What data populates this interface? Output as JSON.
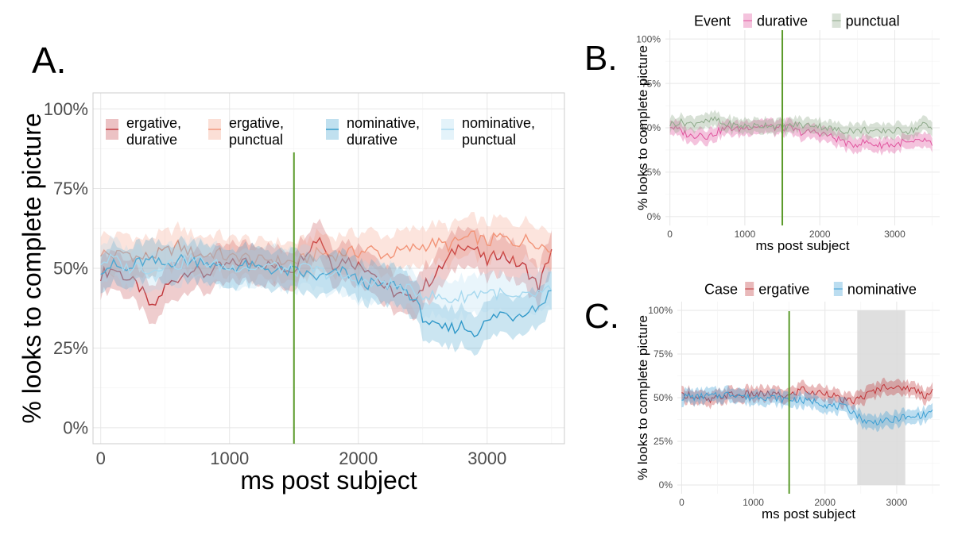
{
  "chart_data": [
    {
      "panel": "A.",
      "type": "line",
      "xlabel": "ms post subject",
      "ylabel": "% looks to complete picture",
      "xlim": [
        -60,
        3600
      ],
      "ylim": [
        -5,
        105
      ],
      "xticks": [
        0,
        1000,
        2000,
        3000
      ],
      "xtick_labels": [
        "0",
        "1000",
        "2000",
        "3000"
      ],
      "yticks": [
        0,
        25,
        50,
        75,
        100
      ],
      "ytick_labels": [
        "0%",
        "25%",
        "50%",
        "75%",
        "100%"
      ],
      "grid": true,
      "border": true,
      "legend_placement": "top-inside",
      "vline": 1500,
      "vline_color": "#5a9a2a",
      "series": [
        {
          "name": "ergative,\ndurative",
          "label_lines": [
            "ergative,",
            "durative"
          ],
          "color": "#c0363a",
          "x": [
            0,
            100,
            200,
            300,
            400,
            500,
            600,
            700,
            800,
            900,
            1000,
            1100,
            1200,
            1300,
            1400,
            1500,
            1600,
            1700,
            1800,
            1900,
            2000,
            2100,
            2200,
            2300,
            2400,
            2500,
            2600,
            2700,
            2800,
            2900,
            3000,
            3100,
            3200,
            3300,
            3400,
            3500
          ],
          "y": [
            48,
            50,
            47,
            44,
            37,
            44,
            47,
            50,
            48,
            50,
            51,
            52,
            52,
            51,
            50,
            50,
            56,
            60,
            51,
            53,
            51,
            50,
            44,
            42,
            40,
            44,
            48,
            53,
            58,
            56,
            52,
            55,
            52,
            50,
            44,
            56
          ],
          "band": 6
        },
        {
          "name": "ergative,\npunctual",
          "label_lines": [
            "ergative,",
            "punctual"
          ],
          "color": "#f29478",
          "x": [
            0,
            100,
            200,
            300,
            400,
            500,
            600,
            700,
            800,
            900,
            1000,
            1100,
            1200,
            1300,
            1400,
            1500,
            1600,
            1700,
            1800,
            1900,
            2000,
            2100,
            2200,
            2300,
            2400,
            2500,
            2600,
            2700,
            2800,
            2900,
            3000,
            3100,
            3200,
            3300,
            3400,
            3500
          ],
          "y": [
            55,
            54,
            55,
            53,
            54,
            55,
            57,
            55,
            54,
            55,
            53,
            54,
            52,
            53,
            52,
            52,
            53,
            55,
            54,
            55,
            55,
            56,
            54,
            55,
            56,
            57,
            58,
            57,
            59,
            60,
            58,
            60,
            58,
            59,
            58,
            55
          ],
          "band": 6
        },
        {
          "name": "nominative,\ndurative",
          "label_lines": [
            "nominative,",
            "durative"
          ],
          "color": "#2f98c9",
          "x": [
            0,
            100,
            200,
            300,
            400,
            500,
            600,
            700,
            800,
            900,
            1000,
            1100,
            1200,
            1300,
            1400,
            1500,
            1600,
            1700,
            1800,
            1900,
            2000,
            2100,
            2200,
            2300,
            2400,
            2500,
            2600,
            2700,
            2800,
            2900,
            3000,
            3100,
            3200,
            3300,
            3400,
            3500
          ],
          "y": [
            50,
            51,
            49,
            52,
            52,
            51,
            53,
            52,
            53,
            50,
            50,
            51,
            50,
            50,
            49,
            49,
            48,
            47,
            48,
            49,
            46,
            45,
            44,
            45,
            42,
            35,
            31,
            31,
            32,
            30,
            33,
            36,
            35,
            37,
            38,
            43
          ],
          "band": 6
        },
        {
          "name": "nominative,\npunctual",
          "label_lines": [
            "nominative,",
            "punctual"
          ],
          "color": "#a6d8ee",
          "x": [
            0,
            100,
            200,
            300,
            400,
            500,
            600,
            700,
            800,
            900,
            1000,
            1100,
            1200,
            1300,
            1400,
            1500,
            1600,
            1700,
            1800,
            1900,
            2000,
            2100,
            2200,
            2300,
            2400,
            2500,
            2600,
            2700,
            2800,
            2900,
            3000,
            3100,
            3200,
            3300,
            3400,
            3500
          ],
          "y": [
            52,
            53,
            50,
            51,
            49,
            52,
            51,
            53,
            52,
            51,
            50,
            51,
            50,
            51,
            50,
            49,
            50,
            49,
            48,
            47,
            46,
            45,
            46,
            44,
            43,
            42,
            41,
            40,
            41,
            42,
            43,
            42,
            40,
            41,
            42,
            43
          ],
          "band": 6
        }
      ]
    },
    {
      "panel": "B.",
      "type": "line",
      "xlabel": "ms post subject",
      "ylabel": "% looks to complete picture",
      "xlim": [
        -60,
        3600
      ],
      "ylim": [
        -5,
        105
      ],
      "xticks": [
        0,
        1000,
        2000,
        3000
      ],
      "xtick_labels": [
        "0",
        "1000",
        "2000",
        "3000"
      ],
      "yticks": [
        0,
        25,
        50,
        75,
        100
      ],
      "ytick_labels": [
        "0%",
        "25%",
        "50%",
        "75%",
        "100%"
      ],
      "grid": true,
      "legend_title": "Event",
      "legend_placement": "top-outside",
      "vline": 1500,
      "vline_color": "#5a9a2a",
      "series": [
        {
          "name": "durative",
          "color": "#e0549e",
          "x": [
            0,
            100,
            200,
            300,
            400,
            500,
            600,
            700,
            800,
            900,
            1000,
            1100,
            1200,
            1300,
            1400,
            1500,
            1600,
            1700,
            1800,
            1900,
            2000,
            2100,
            2200,
            2300,
            2400,
            2500,
            2600,
            2700,
            2800,
            2900,
            3000,
            3100,
            3200,
            3300,
            3400,
            3500
          ],
          "y": [
            51,
            49,
            47,
            45,
            47,
            45,
            47,
            49,
            50,
            49,
            50,
            51,
            51,
            51,
            50,
            50,
            50,
            48,
            47,
            48,
            47,
            46,
            44,
            43,
            40,
            41,
            42,
            41,
            40,
            41,
            40,
            42,
            41,
            42,
            43,
            40
          ],
          "band": 4
        },
        {
          "name": "punctual",
          "color": "#8ea98a",
          "x": [
            0,
            100,
            200,
            300,
            400,
            500,
            600,
            700,
            800,
            900,
            1000,
            1100,
            1200,
            1300,
            1400,
            1500,
            1600,
            1700,
            1800,
            1900,
            2000,
            2100,
            2200,
            2300,
            2400,
            2500,
            2600,
            2700,
            2800,
            2900,
            3000,
            3100,
            3200,
            3300,
            3400,
            3500
          ],
          "y": [
            52,
            53,
            53,
            52,
            54,
            53,
            55,
            52,
            52,
            51,
            51,
            51,
            51,
            52,
            51,
            50,
            51,
            52,
            51,
            52,
            51,
            50,
            49,
            48,
            49,
            48,
            49,
            48,
            47,
            49,
            48,
            49,
            48,
            50,
            52,
            49
          ],
          "band": 4
        }
      ]
    },
    {
      "panel": "C.",
      "type": "line",
      "xlabel": "ms post subject",
      "ylabel": "% looks to complete picture",
      "xlim": [
        -60,
        3600
      ],
      "ylim": [
        -5,
        105
      ],
      "xticks": [
        0,
        1000,
        2000,
        3000
      ],
      "xtick_labels": [
        "0",
        "1000",
        "2000",
        "3000"
      ],
      "yticks": [
        0,
        25,
        50,
        75,
        100
      ],
      "ytick_labels": [
        "0%",
        "25%",
        "50%",
        "75%",
        "100%"
      ],
      "grid": true,
      "legend_title": "Case",
      "legend_placement": "top-outside",
      "vline": 1500,
      "vline_color": "#5a9a2a",
      "shaded_region": [
        2450,
        3120
      ],
      "series": [
        {
          "name": "ergative",
          "color": "#c0363a",
          "x": [
            0,
            100,
            200,
            300,
            400,
            500,
            600,
            700,
            800,
            900,
            1000,
            1100,
            1200,
            1300,
            1400,
            1500,
            1600,
            1700,
            1800,
            1900,
            2000,
            2100,
            2200,
            2300,
            2400,
            2500,
            2600,
            2700,
            2800,
            2900,
            3000,
            3100,
            3200,
            3300,
            3400,
            3500
          ],
          "y": [
            51,
            52,
            50,
            49,
            48,
            50,
            51,
            52,
            51,
            52,
            52,
            52,
            52,
            52,
            51,
            51,
            53,
            56,
            52,
            53,
            53,
            52,
            49,
            48,
            48,
            50,
            52,
            54,
            56,
            57,
            55,
            56,
            55,
            54,
            51,
            55
          ],
          "band": 4
        },
        {
          "name": "nominative",
          "color": "#3c9fd3",
          "x": [
            0,
            100,
            200,
            300,
            400,
            500,
            600,
            700,
            800,
            900,
            1000,
            1100,
            1200,
            1300,
            1400,
            1500,
            1600,
            1700,
            1800,
            1900,
            2000,
            2100,
            2200,
            2300,
            2400,
            2500,
            2600,
            2700,
            2800,
            2900,
            3000,
            3100,
            3200,
            3300,
            3400,
            3500
          ],
          "y": [
            50,
            51,
            50,
            51,
            51,
            51,
            52,
            52,
            52,
            50,
            50,
            51,
            50,
            50,
            49,
            49,
            49,
            48,
            48,
            48,
            46,
            45,
            45,
            44,
            42,
            38,
            36,
            36,
            37,
            36,
            38,
            39,
            38,
            40,
            40,
            43
          ],
          "band": 4
        }
      ]
    }
  ]
}
